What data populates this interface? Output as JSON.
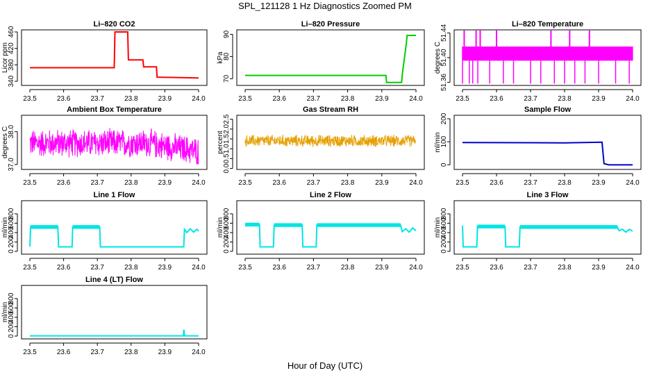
{
  "figure": {
    "title": "SPL_121128  1 Hz Diagnostics Zoomed PM",
    "xlabel": "Hour of Day (UTC)"
  },
  "chart_data": [
    {
      "type": "line",
      "title": "Li–820 CO2",
      "xlabel": "",
      "ylabel": "Licor ppm",
      "xlim": [
        23.5,
        24.0
      ],
      "ylim": [
        330,
        465
      ],
      "x_ticks": [
        "23.5",
        "23.6",
        "23.7",
        "23.8",
        "23.9",
        "24.0"
      ],
      "y_ticks": [
        {
          "v": 340,
          "label": "340"
        },
        {
          "v": 380,
          "label": "380"
        },
        {
          "v": 420,
          "label": "420"
        },
        {
          "v": 460,
          "label": "460"
        }
      ],
      "color": "#ff0000",
      "series": [
        {
          "x": [
            23.5,
            23.75,
            23.752,
            23.79,
            23.792,
            23.835,
            23.837,
            23.875,
            23.877,
            24.0
          ],
          "y": [
            373,
            373,
            460,
            460,
            392,
            392,
            375,
            375,
            350,
            348
          ]
        }
      ]
    },
    {
      "type": "line",
      "title": "Li–820 Pressure",
      "xlabel": "",
      "ylabel": "kPa",
      "xlim": [
        23.5,
        24.0
      ],
      "ylim": [
        67,
        92
      ],
      "x_ticks": [
        "23.5",
        "23.6",
        "23.7",
        "23.8",
        "23.9",
        "24.0"
      ],
      "y_ticks": [
        {
          "v": 70,
          "label": "70"
        },
        {
          "v": 80,
          "label": "80"
        },
        {
          "v": 90,
          "label": "90"
        }
      ],
      "color": "#00cc00",
      "series": [
        {
          "x": [
            23.5,
            23.912,
            23.914,
            23.958,
            23.96,
            23.972,
            23.974,
            24.0
          ],
          "y": [
            71.5,
            71.5,
            68.3,
            68.3,
            72,
            86,
            89.5,
            89.5
          ]
        }
      ]
    },
    {
      "type": "line",
      "title": "Li–820 Temperature",
      "xlabel": "",
      "ylabel": "degrees C",
      "xlim": [
        23.5,
        24.0
      ],
      "ylim": [
        51.355,
        51.445
      ],
      "x_ticks": [
        "23.5",
        "23.6",
        "23.7",
        "23.8",
        "23.9",
        "24.0"
      ],
      "y_ticks": [
        {
          "v": 51.36,
          "label": "51.36"
        },
        {
          "v": 51.4,
          "label": "51.40"
        },
        {
          "v": 51.44,
          "label": "51.44"
        }
      ],
      "color": "#ff00ff",
      "band": {
        "low": 51.395,
        "high": 51.418
      },
      "spikes_up": [
        23.505,
        23.54,
        23.552,
        23.6,
        23.76,
        23.815,
        23.873
      ],
      "spikes_down": [
        23.5,
        23.52,
        23.53,
        23.545,
        23.58,
        23.62,
        23.65,
        23.7,
        23.73,
        23.77,
        23.8,
        23.83,
        23.86,
        23.9,
        23.95,
        23.99
      ]
    },
    {
      "type": "line",
      "title": "Ambient Box Temperature",
      "xlabel": "",
      "ylabel": "degrees C",
      "xlim": [
        23.5,
        24.0
      ],
      "ylim": [
        36.85,
        38.5
      ],
      "x_ticks": [
        "23.5",
        "23.6",
        "23.7",
        "23.8",
        "23.9",
        "24.0"
      ],
      "y_ticks": [
        {
          "v": 37.0,
          "label": "37.0"
        },
        {
          "v": 38.0,
          "label": "38.0"
        }
      ],
      "color": "#ff00ff",
      "band": {
        "center": 37.65,
        "half_width": 0.42,
        "trend_end": -0.25
      }
    },
    {
      "type": "scatter",
      "title": "Gas Stream RH",
      "xlabel": "",
      "ylabel": "percent",
      "xlim": [
        23.5,
        24.0
      ],
      "ylim": [
        -0.05,
        2.7
      ],
      "x_ticks": [
        "23.5",
        "23.6",
        "23.7",
        "23.8",
        "23.9",
        "24.0"
      ],
      "y_ticks": [
        {
          "v": 0.0,
          "label": "0.0"
        },
        {
          "v": 0.5,
          "label": "0.5"
        },
        {
          "v": 1.0,
          "label": "1.0"
        },
        {
          "v": 1.5,
          "label": "1.5"
        },
        {
          "v": 2.0,
          "label": "2.0"
        },
        {
          "v": 2.5,
          "label": "2.5"
        }
      ],
      "color": "#e6a000",
      "band": {
        "center": 1.4,
        "half_width": 0.3
      }
    },
    {
      "type": "line",
      "title": "Sample Flow",
      "xlabel": "",
      "ylabel": "ml/min",
      "xlim": [
        23.5,
        24.0
      ],
      "ylim": [
        -20,
        215
      ],
      "x_ticks": [
        "23.5",
        "23.6",
        "23.7",
        "23.8",
        "23.9",
        "24.0"
      ],
      "y_ticks": [
        {
          "v": 0,
          "label": "0"
        },
        {
          "v": 100,
          "label": "100"
        },
        {
          "v": 200,
          "label": "200"
        }
      ],
      "color": "#0000cc",
      "series": [
        {
          "x": [
            23.5,
            23.7,
            23.8,
            23.91,
            23.916,
            23.93,
            24.0
          ],
          "y": [
            97,
            96,
            95,
            98,
            5,
            0,
            0
          ]
        }
      ]
    },
    {
      "type": "line",
      "title": "Line 1 Flow",
      "xlabel": "",
      "ylabel": "ml/min",
      "xlim": [
        23.5,
        24.0
      ],
      "ylim": [
        -60,
        1080
      ],
      "x_ticks": [
        "23.5",
        "23.6",
        "23.7",
        "23.8",
        "23.9",
        "24.0"
      ],
      "y_ticks": [
        {
          "v": 0,
          "label": "0"
        },
        {
          "v": 200,
          "label": "200"
        },
        {
          "v": 400,
          "label": "400"
        },
        {
          "v": 600,
          "label": "600"
        },
        {
          "v": 800,
          "label": "800"
        }
      ],
      "color": "#00e5e5",
      "series": [
        {
          "x": [
            23.5,
            23.502,
            23.583,
            23.585,
            23.625,
            23.627,
            23.707,
            23.709,
            23.956,
            23.958,
            23.965,
            23.975,
            23.985,
            23.995,
            24.0
          ],
          "y": [
            100,
            520,
            520,
            95,
            95,
            520,
            520,
            95,
            95,
            470,
            400,
            480,
            410,
            470,
            430
          ]
        }
      ]
    },
    {
      "type": "line",
      "title": "Line 2 Flow",
      "xlabel": "",
      "ylabel": "ml/min",
      "xlim": [
        23.5,
        24.0
      ],
      "ylim": [
        -60,
        1080
      ],
      "x_ticks": [
        "23.5",
        "23.6",
        "23.7",
        "23.8",
        "23.9",
        "24.0"
      ],
      "y_ticks": [
        {
          "v": 0,
          "label": "0"
        },
        {
          "v": 200,
          "label": "200"
        },
        {
          "v": 400,
          "label": "400"
        },
        {
          "v": 600,
          "label": "600"
        },
        {
          "v": 800,
          "label": "800"
        }
      ],
      "color": "#00e5e5",
      "series": [
        {
          "x": [
            23.5,
            23.542,
            23.544,
            23.583,
            23.585,
            23.667,
            23.669,
            23.708,
            23.71,
            23.955,
            23.96,
            23.97,
            23.98,
            23.99,
            24.0
          ],
          "y": [
            570,
            570,
            95,
            95,
            560,
            560,
            95,
            95,
            560,
            560,
            420,
            480,
            410,
            500,
            440
          ]
        }
      ]
    },
    {
      "type": "line",
      "title": "Line 3 Flow",
      "xlabel": "",
      "ylabel": "ml/min",
      "xlim": [
        23.5,
        24.0
      ],
      "ylim": [
        -60,
        1080
      ],
      "x_ticks": [
        "23.5",
        "23.6",
        "23.7",
        "23.8",
        "23.9",
        "24.0"
      ],
      "y_ticks": [
        {
          "v": 0,
          "label": "0"
        },
        {
          "v": 200,
          "label": "200"
        },
        {
          "v": 400,
          "label": "400"
        },
        {
          "v": 600,
          "label": "600"
        },
        {
          "v": 800,
          "label": "800"
        }
      ],
      "color": "#00e5e5",
      "series": [
        {
          "x": [
            23.5,
            23.502,
            23.542,
            23.544,
            23.625,
            23.627,
            23.667,
            23.669,
            23.955,
            23.96,
            23.97,
            23.98,
            23.99,
            24.0
          ],
          "y": [
            550,
            95,
            95,
            530,
            530,
            95,
            95,
            520,
            520,
            440,
            470,
            410,
            470,
            430
          ]
        }
      ]
    },
    {
      "type": "line",
      "title": "Line 4 (LT) Flow",
      "xlabel": "",
      "ylabel": "ml/min",
      "xlim": [
        23.5,
        24.0
      ],
      "ylim": [
        -60,
        1080
      ],
      "x_ticks": [
        "23.5",
        "23.6",
        "23.7",
        "23.8",
        "23.9",
        "24.0"
      ],
      "y_ticks": [
        {
          "v": 0,
          "label": "0"
        },
        {
          "v": 200,
          "label": "200"
        },
        {
          "v": 400,
          "label": "400"
        },
        {
          "v": 600,
          "label": "600"
        },
        {
          "v": 800,
          "label": "800"
        }
      ],
      "color": "#00e5e5",
      "series": [
        {
          "x": [
            23.5,
            23.955,
            23.956,
            23.957,
            23.958,
            24.0
          ],
          "y": [
            5,
            5,
            120,
            120,
            5,
            5
          ]
        }
      ]
    }
  ]
}
